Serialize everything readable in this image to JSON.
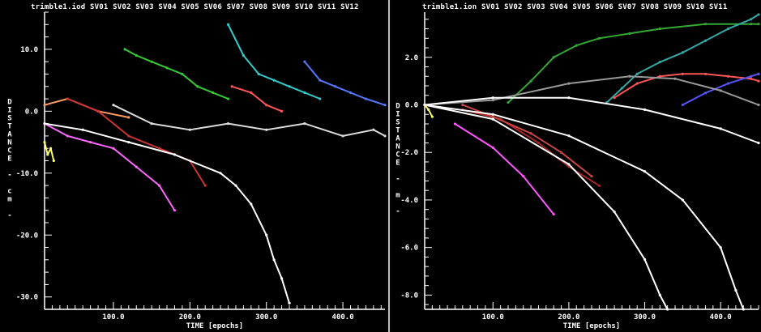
{
  "chart_data": [
    {
      "type": "line",
      "title": "trimble1.iod",
      "header_series_labels": [
        "SV01",
        "SV02",
        "SV03",
        "SV04",
        "SV05",
        "SV06",
        "SV07",
        "SV08",
        "SV09",
        "SV10",
        "SV11",
        "SV12"
      ],
      "xlabel": "TIME [epochs]",
      "ylabel": "DISTANCE - cm -",
      "xlim": [
        10,
        455
      ],
      "ylim": [
        -32,
        16
      ],
      "x_ticks": [
        100,
        200,
        300,
        400
      ],
      "x_tick_labels": [
        "100.0",
        "200.0",
        "300.0",
        "400.0"
      ],
      "y_ticks": [
        10,
        0,
        -10,
        -20,
        -30
      ],
      "y_tick_labels": [
        "10.0",
        "0.0",
        "-10.0",
        "-20.0",
        "-30.0"
      ],
      "grid": false,
      "series": [
        {
          "color": "#ffff66",
          "x": [
            10,
            14,
            18,
            22
          ],
          "y": [
            -5,
            -7,
            -6,
            -8
          ]
        },
        {
          "color": "#ff66ff",
          "x": [
            10,
            40,
            70,
            100,
            130,
            160,
            180
          ],
          "y": [
            -2,
            -4,
            -5,
            -6,
            -9,
            -12,
            -16
          ]
        },
        {
          "color": "#ff9966",
          "x": [
            10,
            40,
            80,
            120
          ],
          "y": [
            1,
            2,
            0,
            -1
          ]
        },
        {
          "color": "#cc3333",
          "x": [
            40,
            80,
            120,
            160,
            200,
            220
          ],
          "y": [
            2,
            0,
            -4,
            -6,
            -8,
            -12
          ]
        },
        {
          "color": "#33cc33",
          "x": [
            115,
            130,
            150,
            170,
            190,
            210,
            230,
            250
          ],
          "y": [
            10,
            9,
            8,
            7,
            6,
            4,
            3,
            2
          ]
        },
        {
          "color": "#33cccc",
          "x": [
            250,
            270,
            290,
            310,
            330,
            350,
            370
          ],
          "y": [
            14,
            9,
            6,
            5,
            4,
            3,
            2
          ]
        },
        {
          "color": "#ff5555",
          "x": [
            255,
            280,
            300,
            320
          ],
          "y": [
            4,
            3,
            1,
            0
          ]
        },
        {
          "color": "#5577ff",
          "x": [
            350,
            370,
            390,
            410,
            430,
            455
          ],
          "y": [
            8,
            5,
            4,
            3,
            2,
            1
          ]
        },
        {
          "color": "#ffffff",
          "x": [
            10,
            60,
            120,
            180,
            240,
            260,
            280,
            300,
            310,
            320,
            330
          ],
          "y": [
            -2,
            -3,
            -5,
            -7,
            -10,
            -12,
            -15,
            -20,
            -24,
            -27,
            -31
          ]
        },
        {
          "color": "#dddddd",
          "x": [
            100,
            150,
            200,
            250,
            300,
            350,
            400,
            440,
            455
          ],
          "y": [
            1,
            -2,
            -3,
            -2,
            -3,
            -2,
            -4,
            -3,
            -4
          ]
        }
      ]
    },
    {
      "type": "line",
      "title": "trimble1.ion",
      "header_series_labels": [
        "SV01",
        "SV02",
        "SV03",
        "SV04",
        "SV05",
        "SV06",
        "SV07",
        "SV08",
        "SV09",
        "SV10",
        "SV11"
      ],
      "xlabel": "TIME [epochs]",
      "ylabel": "DISTANCE - m -",
      "xlim": [
        10,
        450
      ],
      "ylim": [
        -8.6,
        3.9
      ],
      "x_ticks": [
        100,
        200,
        300,
        400
      ],
      "x_tick_labels": [
        "100.0",
        "200.0",
        "300.0",
        "400.0"
      ],
      "y_ticks": [
        2,
        0,
        -2,
        -4,
        -6,
        -8
      ],
      "y_tick_labels": [
        "2.0",
        "0.0",
        "-2.0",
        "-4.0",
        "-6.0",
        "-8.0"
      ],
      "grid": false,
      "series": [
        {
          "color": "#ffff66",
          "x": [
            10,
            15,
            20
          ],
          "y": [
            0,
            -0.2,
            -0.5
          ]
        },
        {
          "color": "#ff55ff",
          "x": [
            50,
            100,
            140,
            180
          ],
          "y": [
            -0.8,
            -1.8,
            -3.0,
            -4.6
          ]
        },
        {
          "color": "#aa2222",
          "x": [
            60,
            110,
            160,
            200,
            240
          ],
          "y": [
            -0.2,
            -0.6,
            -1.6,
            -2.6,
            -3.4
          ]
        },
        {
          "color": "#cc4444",
          "x": [
            60,
            100,
            150,
            190,
            230
          ],
          "y": [
            0,
            -0.5,
            -1.2,
            -2.0,
            -3.0
          ]
        },
        {
          "color": "#33aa33",
          "x": [
            120,
            150,
            180,
            210,
            240,
            280,
            320,
            380,
            440,
            450
          ],
          "y": [
            0.1,
            1.0,
            2.0,
            2.5,
            2.8,
            3.0,
            3.2,
            3.4,
            3.4,
            3.4
          ]
        },
        {
          "color": "#33aaaa",
          "x": [
            250,
            270,
            290,
            320,
            350,
            380,
            410,
            440,
            450
          ],
          "y": [
            0.1,
            0.7,
            1.3,
            1.8,
            2.2,
            2.7,
            3.2,
            3.6,
            3.8
          ]
        },
        {
          "color": "#ff5555",
          "x": [
            260,
            290,
            320,
            350,
            380,
            410,
            440,
            450
          ],
          "y": [
            0.3,
            0.9,
            1.2,
            1.3,
            1.3,
            1.2,
            1.1,
            1.0
          ]
        },
        {
          "color": "#5555ff",
          "x": [
            350,
            380,
            410,
            440,
            450
          ],
          "y": [
            0,
            0.5,
            0.9,
            1.2,
            1.3
          ]
        },
        {
          "color": "#999999",
          "x": [
            10,
            100,
            200,
            280,
            340,
            400,
            450
          ],
          "y": [
            0,
            0.2,
            0.9,
            1.2,
            1.1,
            0.6,
            0
          ]
        },
        {
          "color": "#ffffff",
          "x": [
            10,
            100,
            200,
            300,
            400,
            450
          ],
          "y": [
            0,
            0.3,
            0.3,
            -0.2,
            -1.0,
            -1.6
          ]
        },
        {
          "color": "#ffffff",
          "x": [
            10,
            100,
            200,
            260,
            300,
            320,
            330
          ],
          "y": [
            0,
            -0.6,
            -2.5,
            -4.5,
            -6.5,
            -8.0,
            -8.6
          ]
        },
        {
          "color": "#ffffff",
          "x": [
            10,
            100,
            200,
            300,
            350,
            400,
            420,
            430
          ],
          "y": [
            0,
            -0.4,
            -1.3,
            -2.8,
            -4.0,
            -6.0,
            -7.8,
            -8.6
          ]
        }
      ]
    }
  ]
}
